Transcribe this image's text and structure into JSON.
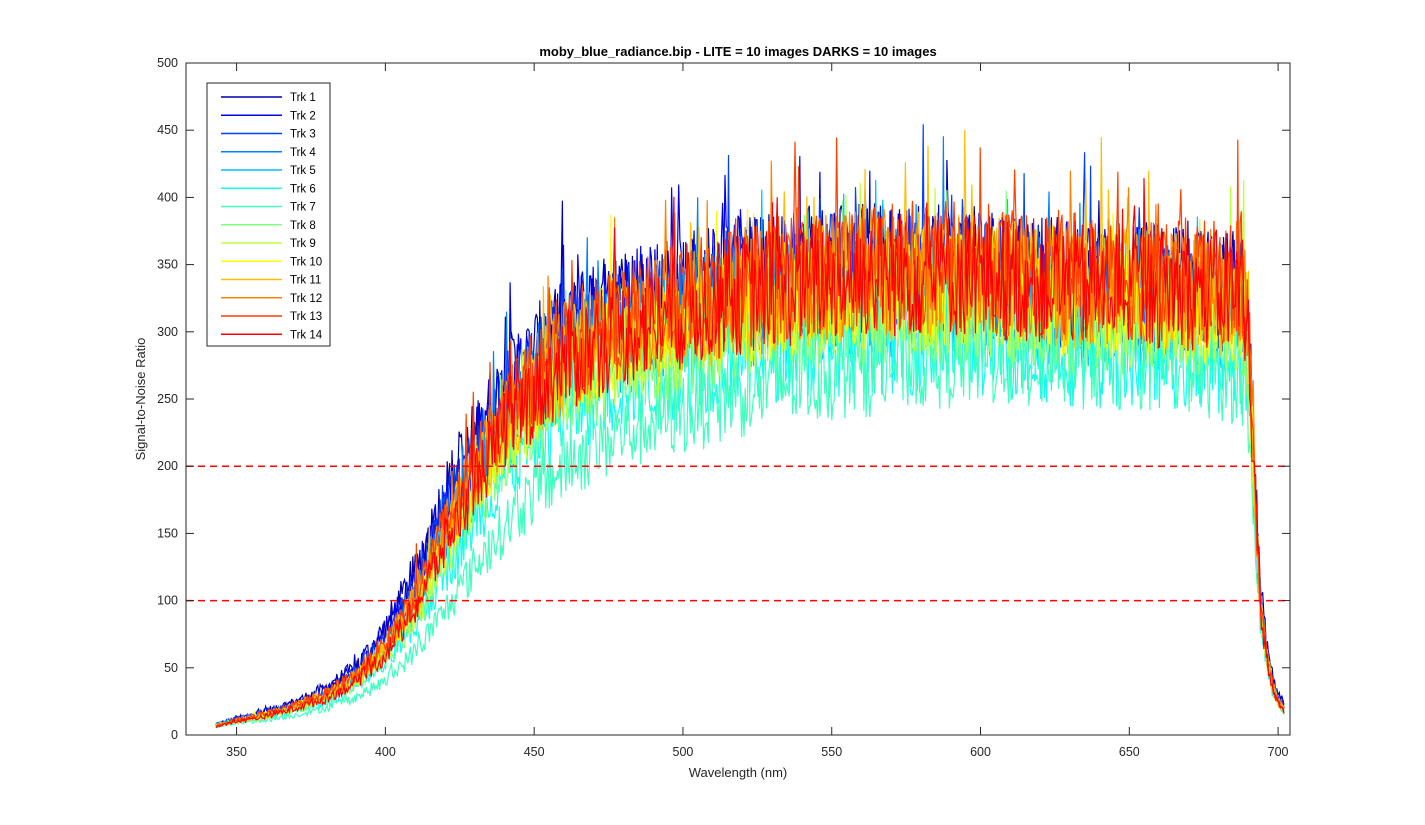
{
  "chart_data": {
    "type": "line",
    "title": "moby_blue_radiance.bip - LITE =  10 images  DARKS = 10 images",
    "xlabel": "Wavelength (nm)",
    "ylabel": "Signal-to-Noise Ratio",
    "xlim": [
      333,
      704
    ],
    "ylim": [
      0,
      500
    ],
    "xticks": [
      350,
      400,
      450,
      500,
      550,
      600,
      650,
      700
    ],
    "yticks": [
      0,
      50,
      100,
      150,
      200,
      250,
      300,
      350,
      400,
      450,
      500
    ],
    "grid": false,
    "legend_position": "top-left",
    "reference_lines": [
      {
        "y": 200,
        "color": "#ff0000",
        "style": "dashed"
      },
      {
        "y": 100,
        "color": "#ff0000",
        "style": "dashed"
      }
    ],
    "series": [
      {
        "name": "Trk 1",
        "color": "#0000aa",
        "x": [
          343,
          350,
          360,
          370,
          380,
          390,
          400,
          410,
          420,
          430,
          440,
          450,
          460,
          470,
          480,
          490,
          500,
          520,
          540,
          560,
          580,
          600,
          620,
          640,
          660,
          680,
          688,
          690,
          692,
          694,
          696,
          698,
          700,
          702
        ],
        "y": [
          8,
          12,
          18,
          25,
          35,
          50,
          80,
          120,
          180,
          220,
          260,
          280,
          300,
          310,
          320,
          325,
          330,
          340,
          345,
          350,
          350,
          345,
          340,
          335,
          335,
          330,
          330,
          300,
          200,
          110,
          70,
          45,
          30,
          25
        ]
      },
      {
        "name": "Trk 2",
        "color": "#0000ee",
        "x": [
          343,
          350,
          360,
          370,
          380,
          390,
          400,
          410,
          420,
          430,
          440,
          450,
          460,
          470,
          480,
          490,
          500,
          520,
          540,
          560,
          580,
          600,
          620,
          640,
          660,
          680,
          688,
          690,
          692,
          694,
          696,
          698,
          700,
          702
        ],
        "y": [
          8,
          12,
          17,
          24,
          33,
          48,
          75,
          115,
          170,
          215,
          255,
          278,
          298,
          308,
          318,
          323,
          328,
          338,
          343,
          348,
          348,
          343,
          338,
          333,
          333,
          328,
          328,
          298,
          195,
          105,
          68,
          43,
          28,
          22
        ]
      },
      {
        "name": "Trk 3",
        "color": "#0040ff",
        "x": [
          343,
          350,
          360,
          370,
          380,
          390,
          400,
          410,
          420,
          430,
          440,
          450,
          460,
          470,
          480,
          490,
          500,
          520,
          540,
          560,
          580,
          600,
          620,
          640,
          660,
          680,
          688,
          690,
          692,
          694,
          696,
          698,
          700,
          702
        ],
        "y": [
          8,
          12,
          16,
          23,
          31,
          45,
          70,
          108,
          160,
          205,
          245,
          270,
          290,
          300,
          310,
          316,
          322,
          332,
          338,
          342,
          342,
          338,
          333,
          328,
          328,
          323,
          323,
          293,
          190,
          100,
          65,
          40,
          27,
          21
        ]
      },
      {
        "name": "Trk 4",
        "color": "#0080ff",
        "x": [
          343,
          350,
          360,
          370,
          380,
          390,
          400,
          410,
          420,
          430,
          440,
          450,
          460,
          470,
          480,
          490,
          500,
          520,
          540,
          560,
          580,
          600,
          620,
          640,
          660,
          680,
          688,
          690,
          692,
          694,
          696,
          698,
          700,
          702
        ],
        "y": [
          8,
          11,
          15,
          21,
          29,
          42,
          65,
          100,
          150,
          195,
          235,
          260,
          280,
          292,
          302,
          308,
          314,
          324,
          330,
          334,
          334,
          330,
          326,
          322,
          322,
          318,
          318,
          288,
          185,
          95,
          62,
          38,
          26,
          20
        ]
      },
      {
        "name": "Trk 5",
        "color": "#00bfff",
        "x": [
          343,
          350,
          360,
          370,
          380,
          390,
          400,
          410,
          420,
          430,
          440,
          450,
          460,
          470,
          480,
          490,
          500,
          520,
          540,
          560,
          580,
          600,
          620,
          640,
          660,
          680,
          688,
          690,
          692,
          694,
          696,
          698,
          700,
          702
        ],
        "y": [
          8,
          11,
          14,
          20,
          27,
          39,
          60,
          92,
          140,
          185,
          225,
          250,
          272,
          285,
          295,
          300,
          306,
          316,
          322,
          326,
          326,
          322,
          318,
          314,
          314,
          310,
          310,
          280,
          180,
          92,
          60,
          36,
          25,
          19
        ]
      },
      {
        "name": "Trk 6",
        "color": "#10ffef",
        "x": [
          343,
          350,
          360,
          370,
          380,
          390,
          400,
          410,
          420,
          430,
          440,
          450,
          460,
          470,
          480,
          490,
          500,
          520,
          540,
          560,
          580,
          600,
          620,
          640,
          660,
          680,
          688,
          690,
          692,
          694,
          696,
          698,
          700,
          702
        ],
        "y": [
          7,
          10,
          13,
          18,
          24,
          35,
          52,
          80,
          120,
          160,
          195,
          220,
          240,
          252,
          262,
          268,
          274,
          284,
          290,
          294,
          294,
          290,
          286,
          282,
          282,
          278,
          278,
          255,
          170,
          88,
          56,
          34,
          23,
          18
        ]
      },
      {
        "name": "Trk 7",
        "color": "#40ffbf",
        "x": [
          343,
          350,
          360,
          370,
          380,
          390,
          400,
          410,
          420,
          430,
          440,
          450,
          460,
          470,
          480,
          490,
          500,
          520,
          540,
          560,
          580,
          600,
          620,
          640,
          660,
          680,
          688,
          690,
          692,
          694,
          696,
          698,
          700,
          702
        ],
        "y": [
          6,
          9,
          11,
          15,
          20,
          28,
          40,
          62,
          92,
          125,
          155,
          180,
          200,
          215,
          226,
          234,
          242,
          256,
          266,
          274,
          280,
          282,
          282,
          280,
          278,
          272,
          265,
          245,
          165,
          85,
          55,
          33,
          22,
          17
        ]
      },
      {
        "name": "Trk 8",
        "color": "#80ff80",
        "x": [
          343,
          350,
          360,
          370,
          380,
          390,
          400,
          410,
          420,
          430,
          440,
          450,
          460,
          470,
          480,
          490,
          500,
          520,
          540,
          560,
          580,
          600,
          620,
          640,
          660,
          680,
          688,
          690,
          692,
          694,
          696,
          698,
          700,
          702
        ],
        "y": [
          7,
          10,
          13,
          19,
          26,
          37,
          56,
          86,
          130,
          172,
          210,
          235,
          256,
          268,
          278,
          285,
          292,
          304,
          312,
          318,
          320,
          318,
          314,
          310,
          310,
          306,
          306,
          278,
          178,
          90,
          58,
          35,
          24,
          18
        ]
      },
      {
        "name": "Trk 9",
        "color": "#bfff40",
        "x": [
          343,
          350,
          360,
          370,
          380,
          390,
          400,
          410,
          420,
          430,
          440,
          450,
          460,
          470,
          480,
          490,
          500,
          520,
          540,
          560,
          580,
          600,
          620,
          640,
          660,
          680,
          688,
          690,
          692,
          694,
          696,
          698,
          700,
          702
        ],
        "y": [
          7,
          10,
          14,
          20,
          27,
          39,
          59,
          90,
          136,
          180,
          218,
          243,
          264,
          276,
          286,
          293,
          300,
          312,
          320,
          326,
          328,
          326,
          322,
          318,
          318,
          314,
          316,
          290,
          182,
          92,
          60,
          36,
          24,
          18
        ]
      },
      {
        "name": "Trk 10",
        "color": "#ffff00",
        "x": [
          343,
          350,
          360,
          370,
          380,
          390,
          400,
          410,
          420,
          430,
          440,
          450,
          460,
          470,
          480,
          490,
          500,
          520,
          540,
          560,
          580,
          600,
          620,
          640,
          660,
          680,
          688,
          690,
          692,
          694,
          696,
          698,
          700,
          702
        ],
        "y": [
          7,
          11,
          15,
          21,
          29,
          41,
          62,
          95,
          142,
          187,
          225,
          250,
          271,
          283,
          293,
          300,
          307,
          319,
          327,
          333,
          335,
          333,
          329,
          325,
          325,
          321,
          325,
          300,
          186,
          94,
          61,
          37,
          25,
          19
        ]
      },
      {
        "name": "Trk 11",
        "color": "#ffbf00",
        "x": [
          343,
          350,
          360,
          370,
          380,
          390,
          400,
          410,
          420,
          430,
          440,
          450,
          460,
          470,
          480,
          490,
          500,
          520,
          540,
          560,
          580,
          600,
          620,
          640,
          660,
          680,
          688,
          690,
          692,
          694,
          696,
          698,
          700,
          702
        ],
        "y": [
          7,
          11,
          15,
          22,
          30,
          43,
          65,
          99,
          148,
          193,
          232,
          257,
          278,
          290,
          300,
          307,
          314,
          326,
          334,
          340,
          342,
          340,
          336,
          332,
          332,
          328,
          334,
          305,
          188,
          96,
          62,
          38,
          25,
          19
        ]
      },
      {
        "name": "Trk 12",
        "color": "#ff8000",
        "x": [
          343,
          350,
          360,
          370,
          380,
          390,
          400,
          410,
          420,
          430,
          440,
          450,
          460,
          470,
          480,
          490,
          500,
          520,
          540,
          560,
          580,
          600,
          620,
          640,
          660,
          680,
          688,
          690,
          692,
          694,
          696,
          698,
          700,
          702
        ],
        "y": [
          7,
          11,
          16,
          22,
          31,
          44,
          67,
          102,
          152,
          198,
          237,
          262,
          283,
          295,
          305,
          312,
          319,
          331,
          339,
          345,
          347,
          345,
          341,
          337,
          337,
          333,
          338,
          308,
          190,
          97,
          63,
          38,
          25,
          19
        ]
      },
      {
        "name": "Trk 13",
        "color": "#ff4000",
        "x": [
          343,
          350,
          360,
          370,
          380,
          390,
          400,
          410,
          420,
          430,
          440,
          450,
          460,
          470,
          480,
          490,
          500,
          520,
          540,
          560,
          580,
          600,
          620,
          640,
          660,
          680,
          688,
          690,
          692,
          694,
          696,
          698,
          700,
          702
        ],
        "y": [
          7,
          11,
          16,
          23,
          31,
          45,
          68,
          104,
          155,
          201,
          240,
          265,
          286,
          298,
          308,
          315,
          322,
          334,
          342,
          348,
          350,
          348,
          344,
          340,
          340,
          336,
          340,
          310,
          192,
          98,
          63,
          38,
          25,
          19
        ]
      },
      {
        "name": "Trk 14",
        "color": "#ff0000",
        "x": [
          343,
          350,
          360,
          370,
          380,
          390,
          400,
          410,
          420,
          430,
          440,
          450,
          460,
          470,
          480,
          490,
          500,
          520,
          540,
          560,
          580,
          600,
          620,
          640,
          660,
          680,
          688,
          690,
          692,
          694,
          696,
          698,
          700,
          702
        ],
        "y": [
          6,
          10,
          14,
          20,
          27,
          39,
          60,
          94,
          142,
          188,
          228,
          254,
          276,
          290,
          300,
          308,
          315,
          328,
          336,
          342,
          344,
          342,
          338,
          334,
          334,
          330,
          332,
          305,
          188,
          95,
          60,
          36,
          23,
          18
        ]
      }
    ]
  }
}
